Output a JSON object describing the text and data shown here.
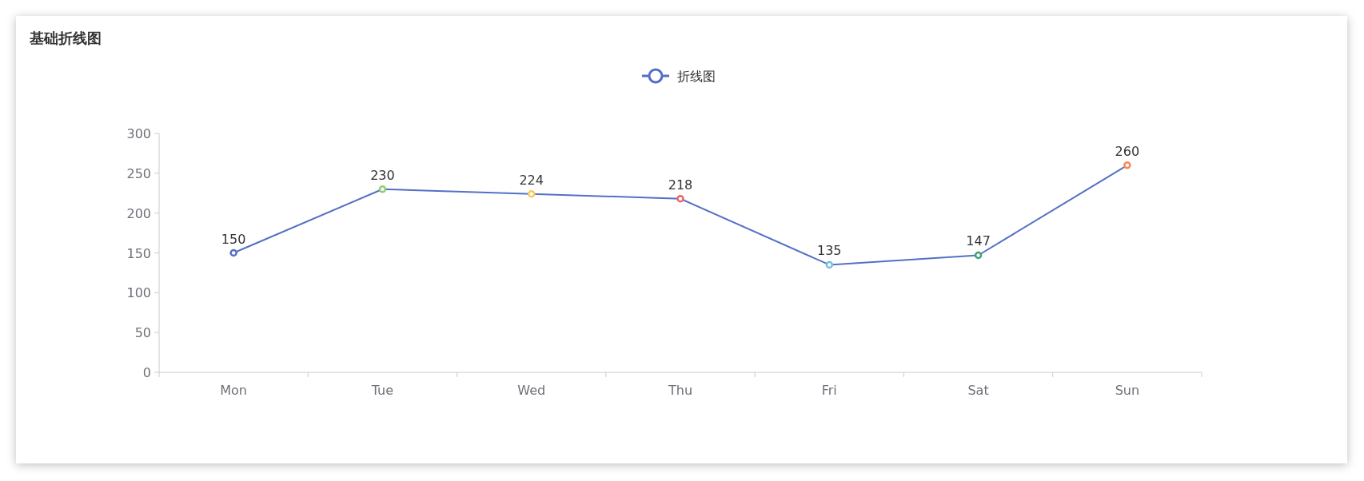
{
  "chart_data": {
    "type": "line",
    "title": "基础折线图",
    "categories": [
      "Mon",
      "Tue",
      "Wed",
      "Thu",
      "Fri",
      "Sat",
      "Sun"
    ],
    "series": [
      {
        "name": "折线图",
        "color": "#5470c6",
        "colors": [
          "#5470c6",
          "#91cc75",
          "#fac858",
          "#ee6666",
          "#73c0de",
          "#3ba272",
          "#fc8452"
        ],
        "values": [
          150,
          230,
          224,
          218,
          135,
          147,
          260
        ]
      }
    ],
    "ylim": [
      0,
      300
    ],
    "yticks": [
      0,
      50,
      100,
      150,
      200,
      250,
      300
    ],
    "data_labels": true,
    "legend": "top",
    "marker": "circle",
    "grid": false
  }
}
